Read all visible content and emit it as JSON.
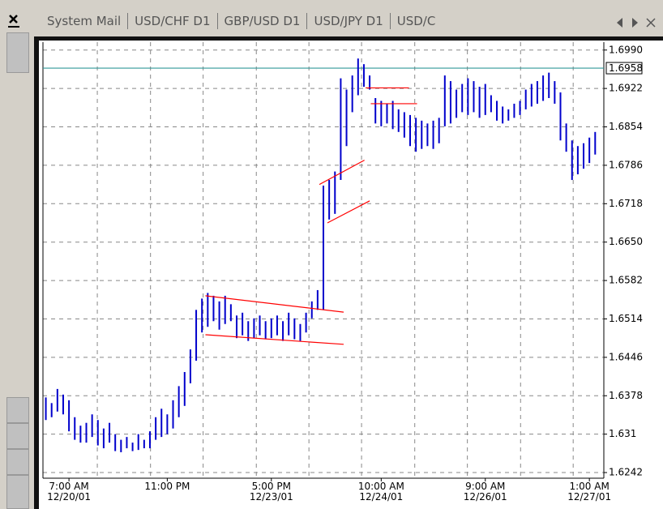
{
  "tabs": [
    "System Mail",
    "USD/CHF D1",
    "GBP/USD D1",
    "USD/JPY D1",
    "USD/C"
  ],
  "chart_data": {
    "type": "ohlc",
    "categories": [
      null,
      null,
      null,
      null,
      "7:00 AM\n12/20/01",
      null,
      null,
      null,
      null,
      null,
      null,
      null,
      null,
      null,
      null,
      null,
      null,
      null,
      null,
      null,
      null,
      "11:00 PM",
      null,
      null,
      null,
      null,
      null,
      null,
      null,
      null,
      null,
      null,
      null,
      null,
      null,
      null,
      null,
      null,
      null,
      "5:00 PM\n12/23/01",
      null,
      null,
      null,
      null,
      null,
      null,
      null,
      null,
      null,
      null,
      null,
      null,
      null,
      null,
      null,
      null,
      null,
      null,
      "10:00 AM\n12/24/01",
      null,
      null,
      null,
      null,
      null,
      null,
      null,
      null,
      null,
      null,
      null,
      null,
      null,
      null,
      null,
      null,
      null,
      "9:00 AM\n12/26/01",
      null,
      null,
      null,
      null,
      null,
      null,
      null,
      null,
      null,
      null,
      null,
      null,
      null,
      null,
      null,
      null,
      null,
      "1:00 AM\n12/27/01",
      null
    ],
    "high": [
      1.6375,
      1.6365,
      1.639,
      1.638,
      1.637,
      1.634,
      1.6325,
      1.633,
      1.6345,
      1.6335,
      1.632,
      1.633,
      1.631,
      1.63,
      1.6305,
      1.6295,
      1.631,
      1.63,
      1.6315,
      1.634,
      1.6355,
      1.6345,
      1.637,
      1.6395,
      1.642,
      1.646,
      1.653,
      1.655,
      1.656,
      1.6555,
      1.6545,
      1.6555,
      1.654,
      1.652,
      1.6525,
      1.651,
      1.6515,
      1.652,
      1.651,
      1.6515,
      1.652,
      1.651,
      1.6525,
      1.6515,
      1.6505,
      1.6525,
      1.6545,
      1.6565,
      1.675,
      1.676,
      1.6775,
      1.694,
      1.692,
      1.6945,
      1.6975,
      1.6965,
      1.6945,
      1.6905,
      1.69,
      1.6895,
      1.69,
      1.6885,
      1.688,
      1.6875,
      1.687,
      1.6865,
      1.686,
      1.6865,
      1.687,
      1.6945,
      1.6935,
      1.692,
      1.693,
      1.694,
      1.6935,
      1.6925,
      1.693,
      1.691,
      1.69,
      1.689,
      1.6885,
      1.6895,
      1.69,
      1.692,
      1.693,
      1.6935,
      1.6945,
      1.695,
      1.6935,
      1.6915,
      1.686,
      1.683,
      1.682,
      1.6825,
      1.6835,
      1.6845
    ],
    "low": [
      1.6335,
      1.634,
      1.635,
      1.6345,
      1.6315,
      1.63,
      1.6295,
      1.6295,
      1.6305,
      1.629,
      1.6285,
      1.6295,
      1.628,
      1.6278,
      1.6285,
      1.628,
      1.6282,
      1.6285,
      1.6285,
      1.63,
      1.6305,
      1.631,
      1.632,
      1.634,
      1.636,
      1.64,
      1.644,
      1.649,
      1.65,
      1.651,
      1.6495,
      1.6505,
      1.651,
      1.648,
      1.6485,
      1.6475,
      1.648,
      1.6485,
      1.6478,
      1.648,
      1.6485,
      1.6475,
      1.6485,
      1.6478,
      1.6475,
      1.649,
      1.6515,
      1.653,
      1.653,
      1.669,
      1.67,
      1.676,
      1.682,
      1.688,
      1.691,
      1.6925,
      1.692,
      1.686,
      1.6855,
      1.686,
      1.685,
      1.6845,
      1.6835,
      1.682,
      1.681,
      1.6815,
      1.682,
      1.6815,
      1.6825,
      1.6855,
      1.686,
      1.687,
      1.688,
      1.6875,
      1.688,
      1.687,
      1.6875,
      1.688,
      1.6865,
      1.686,
      1.6865,
      1.687,
      1.6875,
      1.6885,
      1.689,
      1.6895,
      1.69,
      1.6905,
      1.6895,
      1.683,
      1.681,
      1.676,
      1.677,
      1.678,
      1.679,
      1.6805
    ],
    "color": "#0000cc",
    "xlim": [
      -0.5,
      96.5
    ],
    "xgrid": [
      8.9,
      18.1,
      27.2,
      36.4,
      45.5,
      54.6,
      63.8,
      72.9,
      82.1,
      91.2
    ],
    "ylim": [
      1.6232,
      1.7004
    ],
    "yticks": [
      {
        "value": 1.699,
        "label": "1.6990"
      },
      1.6922,
      1.6854,
      1.6786,
      1.6718,
      {
        "value": 1.665,
        "label": "1.6650"
      },
      1.6582,
      1.6514,
      1.6446,
      1.6378,
      1.631,
      1.6242
    ],
    "grid": true,
    "current_price": {
      "value": 1.6958,
      "label": "1.6958"
    },
    "current_color": "#339999",
    "trendline_color": "#ff0000",
    "trendlines": [
      {
        "x": [
          27.6,
          51.5
        ],
        "y": [
          1.6555,
          1.6526
        ]
      },
      {
        "x": [
          27.6,
          51.5
        ],
        "y": [
          1.6486,
          1.6469
        ]
      },
      {
        "x": [
          47.3,
          55.1
        ],
        "y": [
          1.6752,
          1.6795
        ]
      },
      {
        "x": [
          48.7,
          56.0
        ],
        "y": [
          1.6684,
          1.6723
        ]
      },
      {
        "x": [
          55.3,
          62.8
        ],
        "y": [
          1.6923,
          1.6923
        ]
      },
      {
        "x": [
          56.2,
          64.2
        ],
        "y": [
          1.6895,
          1.6895
        ]
      }
    ]
  }
}
